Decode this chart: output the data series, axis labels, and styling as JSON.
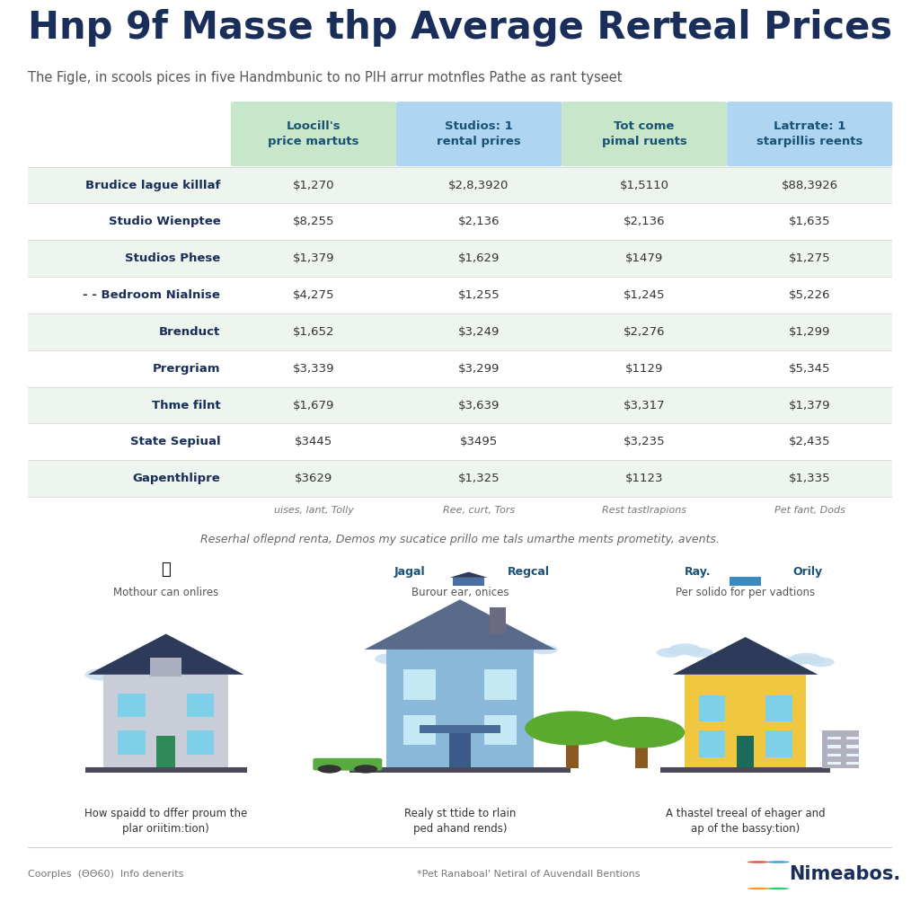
{
  "title": "Hnp 9f Masse thp Average Rerteal Prices",
  "subtitle": "The Figle, in scools pices in five Handmbunic to no PIH arrur motnfles Pathe as rant tyseet",
  "col_headers": [
    "Loocill's\nprice martuts",
    "Studios: 1\nrental prires",
    "Tot come\npimal ruents",
    "Latrrate: 1\nstarpillis reents"
  ],
  "col_header_colors": [
    "#c8e6c9",
    "#b3d9f2",
    "#c8e6c9",
    "#b3d9f2"
  ],
  "row_labels": [
    "Brudice lague killlaf",
    "Studio Wienptee",
    "Studios Phese",
    "- - Bedroom Nialnise",
    "Brenduct",
    "Prergriam",
    "Thme filnt",
    "State Sepiual",
    "Gapenthlipre"
  ],
  "table_data": [
    [
      "$1,270",
      "$2,8,3920",
      "$1,5110",
      "$88,3926"
    ],
    [
      "$8,255",
      "$2,136",
      "$2,136",
      "$1,635"
    ],
    [
      "$1,379",
      "$1,629",
      "$1479",
      "$1,275"
    ],
    [
      "$4,275",
      "$1,255",
      "$1,245",
      "$5,226"
    ],
    [
      "$1,652",
      "$3,249",
      "$2,276",
      "$1,299"
    ],
    [
      "$3,339",
      "$3,299",
      "$1129",
      "$5,345"
    ],
    [
      "$1,679",
      "$3,639",
      "$3,317",
      "$1,379"
    ],
    [
      "$3445",
      "$3495",
      "$3,235",
      "$2,435"
    ],
    [
      "$3629",
      "$1,325",
      "$1123",
      "$1,335"
    ]
  ],
  "col_footers": [
    "uises, lant, Tolly",
    "Ree, curt, Tors",
    "Rest tastlrapions",
    "Pet fant, Dods"
  ],
  "footnote": "Reserhal oflepnd renta, Demos my sucatice prillo me tals umarthe ments prometity, avents.",
  "icon_label_left": "Mothour can onlires",
  "icon_label_center": "Burour ear, onices",
  "icon_label_right": "Per solido for per vadtions",
  "icon_sub_c1": "Jagal",
  "icon_sub_c2": "Regcal",
  "icon_sub_r1": "Ray.",
  "icon_sub_r2": "Orily",
  "caption_left": "How spaidd to dffer proum the\nplar oriitim:tion)",
  "caption_center": "Realy st ttide to rlain\nped ahand rends)",
  "caption_right": "A thastel treeal of ehager and\nap of the bassy:tion)",
  "footer_left": "Coorples  (ΘΘ60)  Info denerits",
  "footer_center": "*Pet Ranaboal' Netiral of Auvendall Bentions",
  "footer_brand": "Nimeabos.",
  "bg_color": "#ffffff",
  "title_color": "#1a2e5a",
  "subtitle_color": "#555555",
  "row_alt_colors": [
    "#eef5ee",
    "#ffffff"
  ],
  "header_text_color": "#1a5276",
  "row_label_color": "#1a2e5a",
  "data_color": "#333333",
  "footer_color": "#777777"
}
